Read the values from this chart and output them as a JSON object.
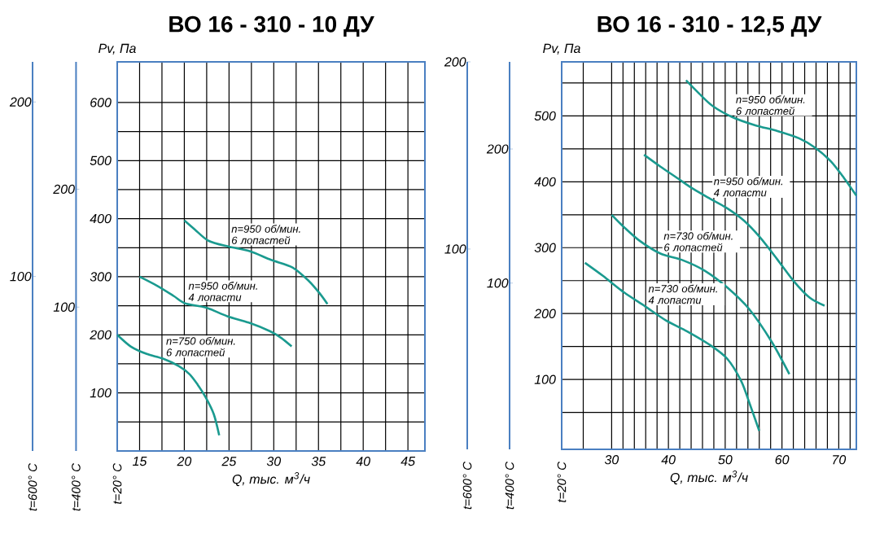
{
  "chart_data": [
    {
      "type": "line",
      "title": "ВО 16 - 310 - 10 ДУ",
      "xlabel": "Q, тыс. м$^{3}$/ч",
      "ylabel": "Pv, Па",
      "y2label": "t=600° C",
      "y3label": "t=400° C",
      "annotations": [
        "t=20° C"
      ],
      "xlim": [
        12.5,
        46.9
      ],
      "xticks": [
        15,
        {
          "value": 17.5,
          "label": null
        },
        20,
        {
          "value": 22.5,
          "label": null
        },
        25,
        {
          "value": 27.5,
          "label": null
        },
        30,
        {
          "value": 32.5,
          "label": null
        },
        35,
        {
          "value": 37.5,
          "label": null
        },
        40,
        {
          "value": 42.5,
          "label": null
        },
        45
      ],
      "ylim": [
        0,
        670
      ],
      "yticks": [
        {
          "value": 50,
          "label": null
        },
        100,
        {
          "value": 150,
          "label": null
        },
        200,
        {
          "value": 250,
          "label": null
        },
        300,
        {
          "value": 350,
          "label": null
        },
        400,
        {
          "value": 450,
          "label": null
        },
        500,
        {
          "value": 550,
          "label": null
        },
        600
      ],
      "y2lim": [
        0,
        223
      ],
      "y2ticks": [
        100,
        200
      ],
      "y3lim": [
        -22,
        308
      ],
      "y3ticks": [
        100,
        200
      ],
      "grid": true,
      "series": [
        {
          "name": "n=950 об/мин. 6 лопастей",
          "color": "#1a9a8f",
          "x": [
            20.0,
            21.2,
            22.7,
            24.9,
            27.3,
            29.7,
            32.1,
            33.9,
            35.1,
            36.0
          ],
          "values": [
            397,
            381,
            362,
            352,
            344,
            329,
            316,
            293,
            272,
            253
          ]
        },
        {
          "name": "n=950 об/мин. 4 лопасти",
          "color": "#1a9a8f",
          "x": [
            15.0,
            17.0,
            18.8,
            20.1,
            22.4,
            24.8,
            27.2,
            29.6,
            30.8,
            32.0
          ],
          "values": [
            300,
            284,
            267,
            254,
            247,
            232,
            221,
            206,
            195,
            180
          ]
        },
        {
          "name": "n=750 об/мин. 6 лопастей",
          "color": "#1a9a8f",
          "x": [
            12.5,
            14.0,
            15.8,
            17.6,
            19.4,
            20.6,
            21.5,
            22.4,
            23.3,
            23.9
          ],
          "values": [
            200,
            180,
            167,
            159,
            146,
            132,
            114,
            92,
            63,
            27
          ]
        }
      ]
    },
    {
      "type": "line",
      "title": "ВО 16 - 310 - 12,5 ДУ",
      "xlabel": "Q, тыс. м$^{3}$/ч",
      "ylabel": "Pv, Па",
      "y2label": "t=400° C",
      "y3label": "t=600° C",
      "annotations": [
        "t=20° C"
      ],
      "xlim": [
        21.2,
        73.1
      ],
      "xticks": [
        {
          "value": 25,
          "label": null
        },
        30,
        {
          "value": 32,
          "label": null
        },
        {
          "value": 34,
          "label": null
        },
        {
          "value": 36,
          "label": null
        },
        {
          "value": 38,
          "label": null
        },
        40,
        {
          "value": 42,
          "label": null
        },
        {
          "value": 44,
          "label": null
        },
        {
          "value": 46,
          "label": null
        },
        {
          "value": 48,
          "label": null
        },
        50,
        {
          "value": 52,
          "label": null
        },
        {
          "value": 54,
          "label": null
        },
        {
          "value": 56,
          "label": null
        },
        {
          "value": 58,
          "label": null
        },
        60,
        {
          "value": 62,
          "label": null
        },
        {
          "value": 64,
          "label": null
        },
        {
          "value": 66,
          "label": null
        },
        {
          "value": 68,
          "label": null
        },
        70,
        {
          "value": 72,
          "label": null
        }
      ],
      "ylim": [
        -6,
        582
      ],
      "yticks": [
        {
          "value": 50,
          "label": null
        },
        100,
        {
          "value": 150,
          "label": null
        },
        200,
        {
          "value": 250,
          "label": null
        },
        300,
        {
          "value": 350,
          "label": null
        },
        400,
        {
          "value": 450,
          "label": null
        },
        500,
        {
          "value": 550,
          "label": null
        }
      ],
      "y2lim": [
        -24,
        265
      ],
      "y2ticks": [
        100,
        200
      ],
      "y3lim": [
        -7,
        200
      ],
      "y3ticks": [
        100,
        200
      ],
      "grid": true,
      "series": [
        {
          "name": "n=950 об/мин. 6 лопастей",
          "color": "#1a9a8f",
          "x": [
            43.1,
            45.4,
            47.8,
            51.3,
            55.2,
            59.2,
            63.0,
            65.8,
            68.6,
            70.9,
            73.1
          ],
          "values": [
            554,
            534,
            515,
            498,
            486,
            477,
            466,
            452,
            431,
            406,
            379
          ]
        },
        {
          "name": "n=950 об/мин. 4 лопасти",
          "color": "#1a9a8f",
          "x": [
            35.7,
            38.6,
            41.5,
            44.4,
            47.4,
            50.3,
            53.3,
            56.2,
            59.2,
            62.1,
            64.9,
            67.5
          ],
          "values": [
            441,
            423,
            406,
            389,
            374,
            360,
            341,
            315,
            282,
            249,
            224,
            212
          ]
        },
        {
          "name": "n=730 об/мин. 6 лопастей",
          "color": "#1a9a8f",
          "x": [
            30.0,
            32.2,
            35.0,
            38.6,
            42.5,
            46.4,
            50.3,
            54.2,
            58.2,
            61.3
          ],
          "values": [
            350,
            331,
            310,
            291,
            281,
            265,
            240,
            207,
            157,
            108
          ]
        },
        {
          "name": "n=730 об/мин. 4 лопасти",
          "color": "#1a9a8f",
          "x": [
            25.3,
            28.5,
            32.2,
            35.9,
            39.5,
            43.3,
            47.2,
            50.3,
            52.8,
            54.2,
            56.0
          ],
          "values": [
            277,
            257,
            232,
            211,
            190,
            173,
            153,
            132,
            98,
            66,
            22
          ]
        }
      ]
    }
  ]
}
